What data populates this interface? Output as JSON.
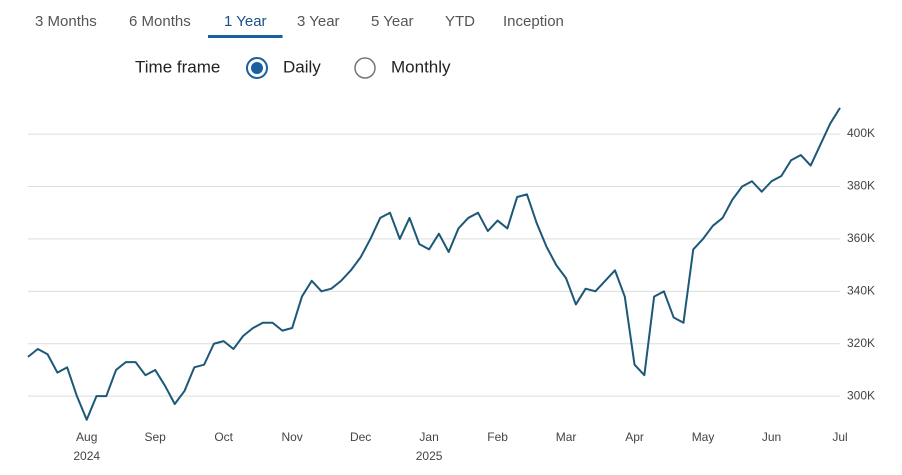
{
  "tabs": [
    "3 Months",
    "6 Months",
    "1 Year",
    "3 Year",
    "5 Year",
    "YTD",
    "Inception"
  ],
  "selected_tab": 2,
  "time_frame": {
    "label": "Time frame",
    "options": [
      "Daily",
      "Monthly"
    ],
    "selected": 0
  },
  "chart_data": {
    "type": "line",
    "color": "#1d5878",
    "grid": true,
    "categories": [
      null,
      null,
      null,
      null,
      null,
      null,
      "Aug",
      null,
      null,
      null,
      null,
      null,
      null,
      "Sep",
      null,
      null,
      null,
      null,
      null,
      null,
      "Oct",
      null,
      null,
      null,
      null,
      null,
      null,
      "Nov",
      null,
      null,
      null,
      null,
      null,
      null,
      "Dec",
      null,
      null,
      null,
      null,
      null,
      null,
      "Jan",
      null,
      null,
      null,
      null,
      null,
      null,
      "Feb",
      null,
      null,
      null,
      null,
      null,
      null,
      "Mar",
      null,
      null,
      null,
      null,
      null,
      null,
      "Apr",
      null,
      null,
      null,
      null,
      null,
      null,
      "May",
      null,
      null,
      null,
      null,
      null,
      null,
      "Jun",
      null,
      null,
      null,
      null,
      null,
      null,
      "Jul"
    ],
    "year_labels": {
      "Aug": "2024",
      "Jan": "2025"
    },
    "values": [
      315,
      318,
      316,
      309,
      311,
      300,
      291,
      300,
      300,
      310,
      313,
      313,
      308,
      310,
      304,
      297,
      302,
      311,
      312,
      320,
      321,
      318,
      323,
      326,
      328,
      328,
      325,
      326,
      338,
      344,
      340,
      341,
      344,
      348,
      353,
      360,
      368,
      370,
      360,
      368,
      358,
      356,
      362,
      355,
      364,
      368,
      370,
      363,
      367,
      364,
      376,
      377,
      366,
      357,
      350,
      345,
      335,
      341,
      340,
      344,
      348,
      338,
      312,
      308,
      338,
      340,
      330,
      328,
      356,
      360,
      365,
      368,
      375,
      380,
      382,
      378,
      382,
      384,
      390,
      392,
      388,
      396,
      404,
      410
    ],
    "ylim": [
      289,
      413
    ],
    "yticks": [
      {
        "value": 300,
        "label": "300K"
      },
      {
        "value": 320,
        "label": "320K"
      },
      {
        "value": 340,
        "label": "340K"
      },
      {
        "value": 360,
        "label": "360K"
      },
      {
        "value": 380,
        "label": "380K"
      },
      {
        "value": 400,
        "label": "400K"
      }
    ]
  }
}
